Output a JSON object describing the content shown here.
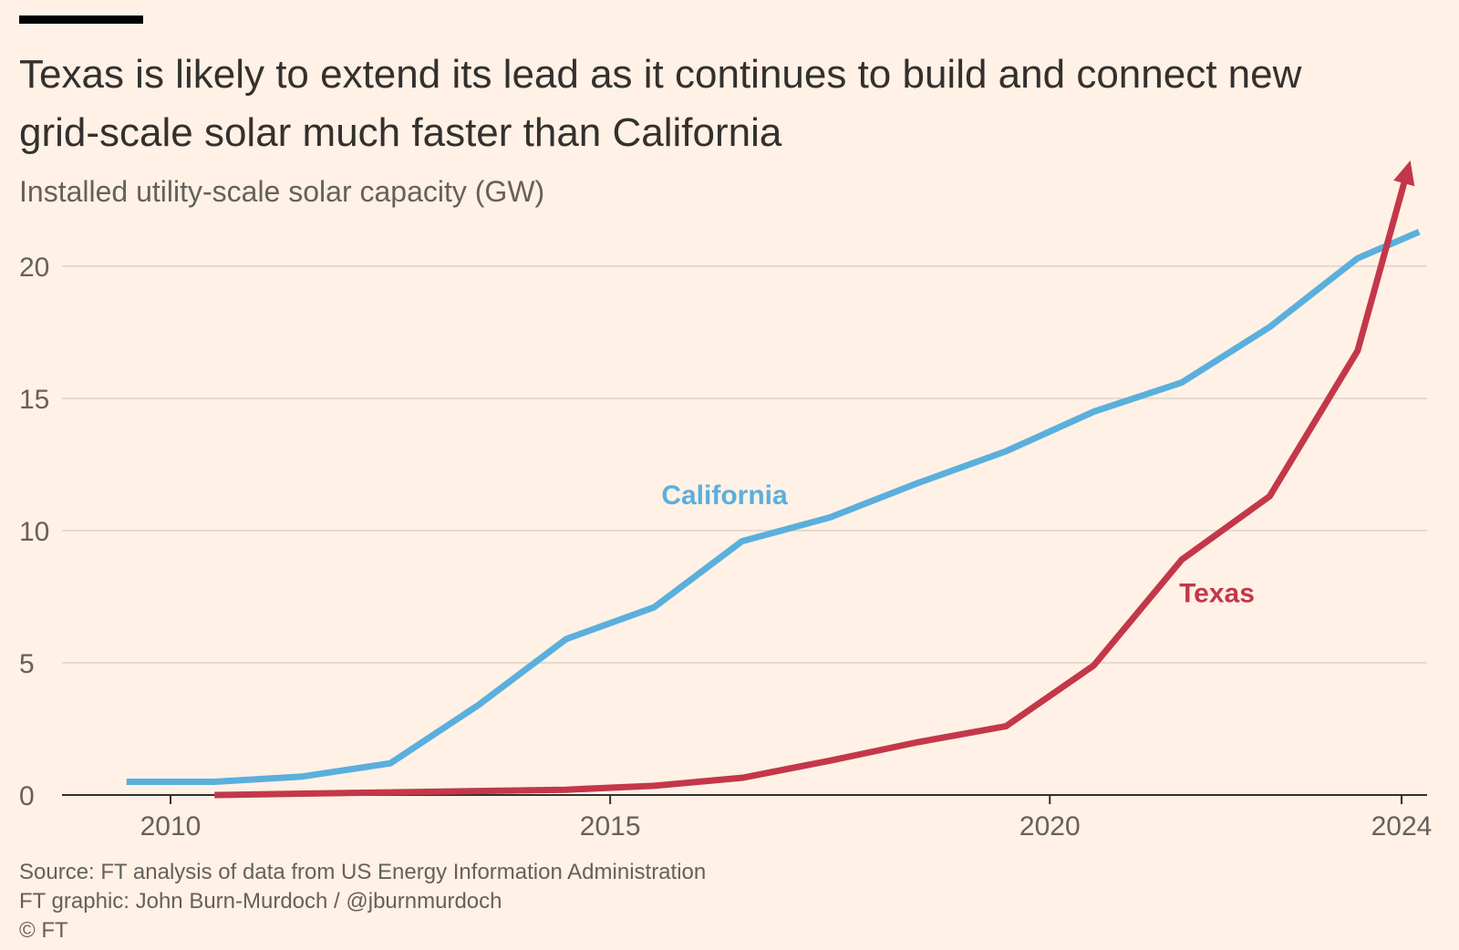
{
  "header": {
    "title": "Texas is likely to extend its lead as it continues to build and connect new grid-scale solar much faster than California",
    "subtitle": "Installed utility-scale solar capacity (GW)"
  },
  "footer": {
    "source": "Source: FT analysis of data from US Energy Information Administration",
    "credit": "FT graphic: John Burn-Murdoch / @jburnmurdoch",
    "copyright": "© FT"
  },
  "colors": {
    "background": "#FFF1E5",
    "california": "#5AAFDD",
    "texas": "#C4374A",
    "grid": "#E6D9CE",
    "axis": "#33302E"
  },
  "chart_data": {
    "type": "line",
    "title": "Texas is likely to extend its lead as it continues to build and connect new grid-scale solar much faster than California",
    "ylabel": "Installed utility-scale solar capacity (GW)",
    "xlabel": "",
    "xlim": [
      2009,
      2024.3
    ],
    "ylim": [
      0,
      20
    ],
    "x_ticks": [
      {
        "value": 2010,
        "label": "2010"
      },
      {
        "value": 2015,
        "label": "2015"
      },
      {
        "value": 2020,
        "label": "2020"
      },
      {
        "value": 2024,
        "label": "2024"
      }
    ],
    "y_ticks": [
      {
        "value": 0,
        "label": "0"
      },
      {
        "value": 5,
        "label": "5"
      },
      {
        "value": 10,
        "label": "10"
      },
      {
        "value": 15,
        "label": "15"
      },
      {
        "value": 20,
        "label": "20"
      }
    ],
    "grid": true,
    "series": [
      {
        "name": "California",
        "color": "#5AAFDD",
        "label_anchor": {
          "x": 2016.3,
          "y": 11.0
        },
        "points": [
          {
            "x": 2009.5,
            "y": 0.5
          },
          {
            "x": 2010.5,
            "y": 0.5
          },
          {
            "x": 2011.5,
            "y": 0.7
          },
          {
            "x": 2012.5,
            "y": 1.2
          },
          {
            "x": 2013.5,
            "y": 3.4
          },
          {
            "x": 2014.5,
            "y": 5.9
          },
          {
            "x": 2015.5,
            "y": 7.1
          },
          {
            "x": 2016.5,
            "y": 9.6
          },
          {
            "x": 2017.5,
            "y": 10.5
          },
          {
            "x": 2018.5,
            "y": 11.8
          },
          {
            "x": 2019.5,
            "y": 13.0
          },
          {
            "x": 2020.5,
            "y": 14.5
          },
          {
            "x": 2021.5,
            "y": 15.6
          },
          {
            "x": 2022.5,
            "y": 17.7
          },
          {
            "x": 2023.5,
            "y": 20.3
          },
          {
            "x": 2024.2,
            "y": 21.3
          }
        ]
      },
      {
        "name": "Texas",
        "color": "#C4374A",
        "arrow_end": true,
        "label_anchor": {
          "x": 2021.9,
          "y": 7.3
        },
        "points": [
          {
            "x": 2010.5,
            "y": 0.0
          },
          {
            "x": 2011.5,
            "y": 0.05
          },
          {
            "x": 2012.5,
            "y": 0.1
          },
          {
            "x": 2013.5,
            "y": 0.15
          },
          {
            "x": 2014.5,
            "y": 0.2
          },
          {
            "x": 2015.5,
            "y": 0.35
          },
          {
            "x": 2016.5,
            "y": 0.65
          },
          {
            "x": 2017.5,
            "y": 1.3
          },
          {
            "x": 2018.5,
            "y": 2.0
          },
          {
            "x": 2019.5,
            "y": 2.6
          },
          {
            "x": 2020.5,
            "y": 4.9
          },
          {
            "x": 2021.5,
            "y": 8.9
          },
          {
            "x": 2022.5,
            "y": 11.3
          },
          {
            "x": 2023.5,
            "y": 16.8
          },
          {
            "x": 2024.1,
            "y": 24.0
          }
        ]
      }
    ]
  }
}
